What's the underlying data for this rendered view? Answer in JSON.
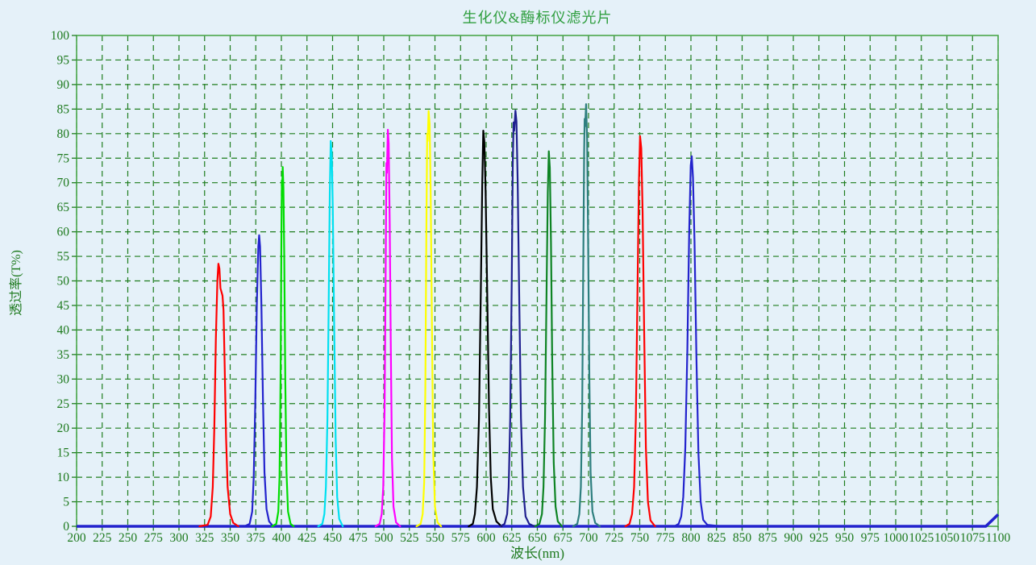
{
  "page": {
    "background_color": "#e5f1f9"
  },
  "chart_data": {
    "type": "line",
    "title": "生化仪&酶标仪滤光片",
    "xlabel": "波长(nm)",
    "ylabel": "透过率(T%)",
    "xlim": [
      200,
      1100
    ],
    "ylim": [
      0,
      100
    ],
    "xticks": [
      200,
      225,
      250,
      275,
      300,
      325,
      350,
      375,
      400,
      425,
      450,
      475,
      500,
      525,
      550,
      575,
      600,
      625,
      650,
      675,
      700,
      725,
      750,
      775,
      800,
      825,
      850,
      875,
      900,
      925,
      950,
      975,
      1000,
      1025,
      1050,
      1075,
      1100
    ],
    "yticks": [
      0,
      5,
      10,
      15,
      20,
      25,
      30,
      35,
      40,
      45,
      50,
      55,
      60,
      65,
      70,
      75,
      80,
      85,
      90,
      95,
      100
    ],
    "grid": "dashed-green-both-axes",
    "legend_position": "none",
    "style_colors": {
      "title_text": "#2f9e3f",
      "axis_text": "#1e7a1e",
      "frame": "#4ca84c",
      "gridline": "#1e7d1e",
      "background": "#e5f1f9"
    },
    "baseline": {
      "name": "zero-transmission-baseline",
      "color": "#2323cd",
      "width": 3.5,
      "points": [
        [
          200,
          0
        ],
        [
          1088,
          0
        ],
        [
          1094,
          1.2
        ],
        [
          1100,
          2.4
        ]
      ]
    },
    "series": [
      {
        "name": "filter-340nm",
        "center_nm": 340,
        "peak_T": 53.5,
        "color": "#ff0000",
        "points": [
          [
            320,
            0
          ],
          [
            328,
            0.3
          ],
          [
            331,
            2
          ],
          [
            333,
            8
          ],
          [
            334.5,
            20
          ],
          [
            336,
            38
          ],
          [
            337.5,
            50
          ],
          [
            338.5,
            53.5
          ],
          [
            339.5,
            52.5
          ],
          [
            340.5,
            48.5
          ],
          [
            342.5,
            47
          ],
          [
            343.5,
            44
          ],
          [
            344.5,
            34
          ],
          [
            346,
            18
          ],
          [
            347.5,
            8
          ],
          [
            350,
            2.5
          ],
          [
            353,
            0.7
          ],
          [
            358,
            0
          ]
        ]
      },
      {
        "name": "filter-378nm",
        "center_nm": 378,
        "peak_T": 59.3,
        "color": "#2323cd",
        "points": [
          [
            364,
            0
          ],
          [
            369,
            0.5
          ],
          [
            371.5,
            3
          ],
          [
            373,
            10
          ],
          [
            374.5,
            25
          ],
          [
            376,
            45
          ],
          [
            377.5,
            57
          ],
          [
            378.3,
            59.3
          ],
          [
            379.2,
            57
          ],
          [
            380.5,
            45
          ],
          [
            382,
            26
          ],
          [
            383.5,
            11
          ],
          [
            385.5,
            3.5
          ],
          [
            388,
            1
          ],
          [
            392,
            0
          ]
        ]
      },
      {
        "name": "filter-400nm",
        "center_nm": 400,
        "peak_T": 73.2,
        "color": "#00dd00",
        "points": [
          [
            391,
            0
          ],
          [
            395,
            0.5
          ],
          [
            397,
            3
          ],
          [
            398.2,
            10
          ],
          [
            399.2,
            30
          ],
          [
            400,
            58
          ],
          [
            400.5,
            70.5
          ],
          [
            400.8,
            69
          ],
          [
            401.3,
            73.2
          ],
          [
            402,
            69
          ],
          [
            402.8,
            55
          ],
          [
            403.8,
            30
          ],
          [
            405,
            11
          ],
          [
            406.5,
            3
          ],
          [
            409,
            0.5
          ],
          [
            412,
            0
          ]
        ]
      },
      {
        "name": "filter-450nm",
        "center_nm": 450,
        "peak_T": 78.5,
        "color": "#00e0f0",
        "points": [
          [
            436,
            0
          ],
          [
            440,
            0.5
          ],
          [
            442,
            2.5
          ],
          [
            443.5,
            8
          ],
          [
            445,
            22
          ],
          [
            446.2,
            45
          ],
          [
            447.3,
            68
          ],
          [
            448.2,
            78.5
          ],
          [
            449.2,
            76
          ],
          [
            450.2,
            65
          ],
          [
            451.5,
            42
          ],
          [
            453,
            18
          ],
          [
            454.5,
            6
          ],
          [
            456.5,
            1.5
          ],
          [
            460,
            0
          ]
        ]
      },
      {
        "name": "filter-505nm",
        "center_nm": 505,
        "peak_T": 80.8,
        "color": "#ff00ff",
        "points": [
          [
            492,
            0
          ],
          [
            496,
            0.5
          ],
          [
            498,
            2.5
          ],
          [
            499.5,
            8
          ],
          [
            500.8,
            24
          ],
          [
            501.8,
            50
          ],
          [
            502.6,
            74
          ],
          [
            503.1,
            72
          ],
          [
            504,
            80.8
          ],
          [
            504.8,
            78
          ],
          [
            505.8,
            62
          ],
          [
            506.8,
            38
          ],
          [
            508,
            14
          ],
          [
            509.5,
            4
          ],
          [
            512,
            0.8
          ],
          [
            516,
            0
          ]
        ]
      },
      {
        "name": "filter-545nm",
        "center_nm": 545,
        "peak_T": 84.6,
        "color": "#ffff00",
        "points": [
          [
            532,
            0
          ],
          [
            536,
            0.5
          ],
          [
            538,
            2.5
          ],
          [
            539.5,
            9
          ],
          [
            540.6,
            28
          ],
          [
            541.6,
            60
          ],
          [
            542.4,
            80
          ],
          [
            542.9,
            78.5
          ],
          [
            543.8,
            84.6
          ],
          [
            544.8,
            82
          ],
          [
            545.8,
            68
          ],
          [
            547,
            42
          ],
          [
            548.3,
            15
          ],
          [
            550,
            4
          ],
          [
            552.5,
            0.8
          ],
          [
            556,
            0
          ]
        ]
      },
      {
        "name": "filter-600nm",
        "center_nm": 597,
        "peak_T": 80.6,
        "color": "#000000",
        "points": [
          [
            583,
            0
          ],
          [
            587,
            0.5
          ],
          [
            589,
            2.5
          ],
          [
            591,
            8
          ],
          [
            593,
            22
          ],
          [
            594.8,
            48
          ],
          [
            596.2,
            70
          ],
          [
            597.2,
            80.6
          ],
          [
            598.2,
            78.5
          ],
          [
            599.5,
            68
          ],
          [
            601,
            48
          ],
          [
            602.8,
            24
          ],
          [
            604.5,
            10
          ],
          [
            606.5,
            3.5
          ],
          [
            610,
            1
          ],
          [
            615,
            0
          ]
        ]
      },
      {
        "name": "filter-630nm",
        "center_nm": 629,
        "peak_T": 84.7,
        "color": "#1f1f8f",
        "points": [
          [
            614,
            0
          ],
          [
            618,
            0.5
          ],
          [
            620.5,
            2.5
          ],
          [
            622,
            8
          ],
          [
            623.5,
            22
          ],
          [
            625,
            50
          ],
          [
            626,
            74
          ],
          [
            626.8,
            82.3
          ],
          [
            627.4,
            80.6
          ],
          [
            628.6,
            84.7
          ],
          [
            629.6,
            82.5
          ],
          [
            630.8,
            70
          ],
          [
            632.2,
            48
          ],
          [
            634,
            22
          ],
          [
            636,
            8
          ],
          [
            638.5,
            2
          ],
          [
            642,
            0.5
          ],
          [
            647,
            0
          ]
        ]
      },
      {
        "name": "filter-660nm",
        "center_nm": 661,
        "peak_T": 76.4,
        "color": "#0e8424",
        "points": [
          [
            648,
            0
          ],
          [
            652,
            0.5
          ],
          [
            654.5,
            2.5
          ],
          [
            656,
            8
          ],
          [
            657.5,
            22
          ],
          [
            659,
            48
          ],
          [
            660.2,
            68
          ],
          [
            661.2,
            76.4
          ],
          [
            662.2,
            73
          ],
          [
            663.3,
            58
          ],
          [
            664.5,
            34
          ],
          [
            666,
            13
          ],
          [
            667.8,
            4
          ],
          [
            670,
            1
          ],
          [
            674,
            0
          ]
        ]
      },
      {
        "name": "filter-697nm",
        "center_nm": 697,
        "peak_T": 86,
        "color": "#2e7f7f",
        "points": [
          [
            685,
            0
          ],
          [
            689,
            0.5
          ],
          [
            691,
            2.5
          ],
          [
            692.5,
            8
          ],
          [
            693.8,
            24
          ],
          [
            694.8,
            52
          ],
          [
            695.7,
            76
          ],
          [
            696.2,
            83
          ],
          [
            696.7,
            81.5
          ],
          [
            697.6,
            86
          ],
          [
            698.6,
            79
          ],
          [
            699.6,
            58
          ],
          [
            700.8,
            30
          ],
          [
            702,
            11
          ],
          [
            703.8,
            3
          ],
          [
            706.5,
            0.7
          ],
          [
            711,
            0
          ]
        ]
      },
      {
        "name": "filter-750nm",
        "center_nm": 750,
        "peak_T": 79.5,
        "color": "#ff0000",
        "points": [
          [
            736,
            0
          ],
          [
            740,
            0.5
          ],
          [
            742.5,
            2.5
          ],
          [
            744.5,
            8
          ],
          [
            746.2,
            22
          ],
          [
            747.8,
            48
          ],
          [
            749.2,
            70
          ],
          [
            750.3,
            79.5
          ],
          [
            751.5,
            77
          ],
          [
            752.8,
            64
          ],
          [
            754.3,
            40
          ],
          [
            756,
            16
          ],
          [
            758,
            5
          ],
          [
            760.5,
            1.2
          ],
          [
            765,
            0
          ]
        ]
      },
      {
        "name": "filter-800nm",
        "center_nm": 800,
        "peak_T": 75.4,
        "color": "#2323cd",
        "points": [
          [
            784,
            0
          ],
          [
            788,
            0.5
          ],
          [
            790.5,
            2
          ],
          [
            792.5,
            6
          ],
          [
            794.5,
            16
          ],
          [
            796.5,
            36
          ],
          [
            798.3,
            60
          ],
          [
            799.8,
            73.5
          ],
          [
            800.8,
            75.4
          ],
          [
            802,
            71
          ],
          [
            803.5,
            58
          ],
          [
            805.3,
            35
          ],
          [
            807.3,
            15
          ],
          [
            809.5,
            5
          ],
          [
            812,
            1.3
          ],
          [
            816,
            0.3
          ],
          [
            830,
            0
          ]
        ]
      }
    ]
  }
}
